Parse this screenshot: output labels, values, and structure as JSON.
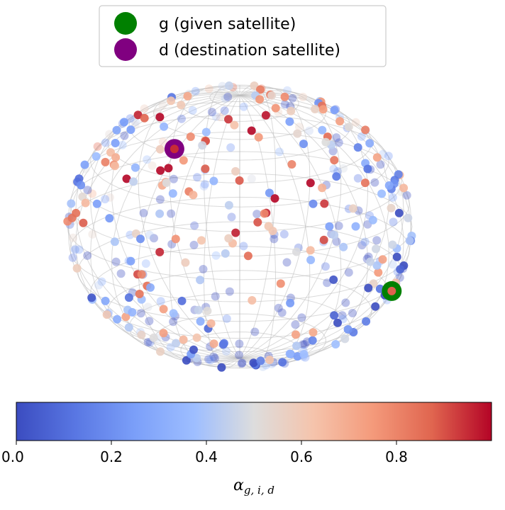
{
  "chart_data": {
    "type": "scatter",
    "projection": "3d-sphere",
    "title": "",
    "legend": {
      "placement": "top-center",
      "entries": [
        {
          "label": "g (given satellite)",
          "color": "#008000"
        },
        {
          "label": "d (destination satellite)",
          "color": "#800080"
        }
      ]
    },
    "colorbar": {
      "colormap": "coolwarm",
      "label": "α",
      "label_subscript": "g, i, d",
      "min": 0.0,
      "max": 1.0,
      "ticks": [
        0.0,
        0.2,
        0.4,
        0.6,
        0.8
      ],
      "tick_labels": [
        "0.0",
        "0.2",
        "0.4",
        "0.6",
        "0.8"
      ]
    },
    "sphere": {
      "wireframe": true,
      "wire_color": "#bbbbbb"
    },
    "highlight_points": [
      {
        "name": "g",
        "lat": -22,
        "lon": 72,
        "alpha": 0.88
      },
      {
        "name": "d",
        "lat": 52,
        "lon": -38,
        "alpha": 0.95
      }
    ],
    "point_count": 420,
    "colors": {
      "low": "#3b4cc0",
      "mid": "#dddddd",
      "high": "#b40426"
    }
  }
}
